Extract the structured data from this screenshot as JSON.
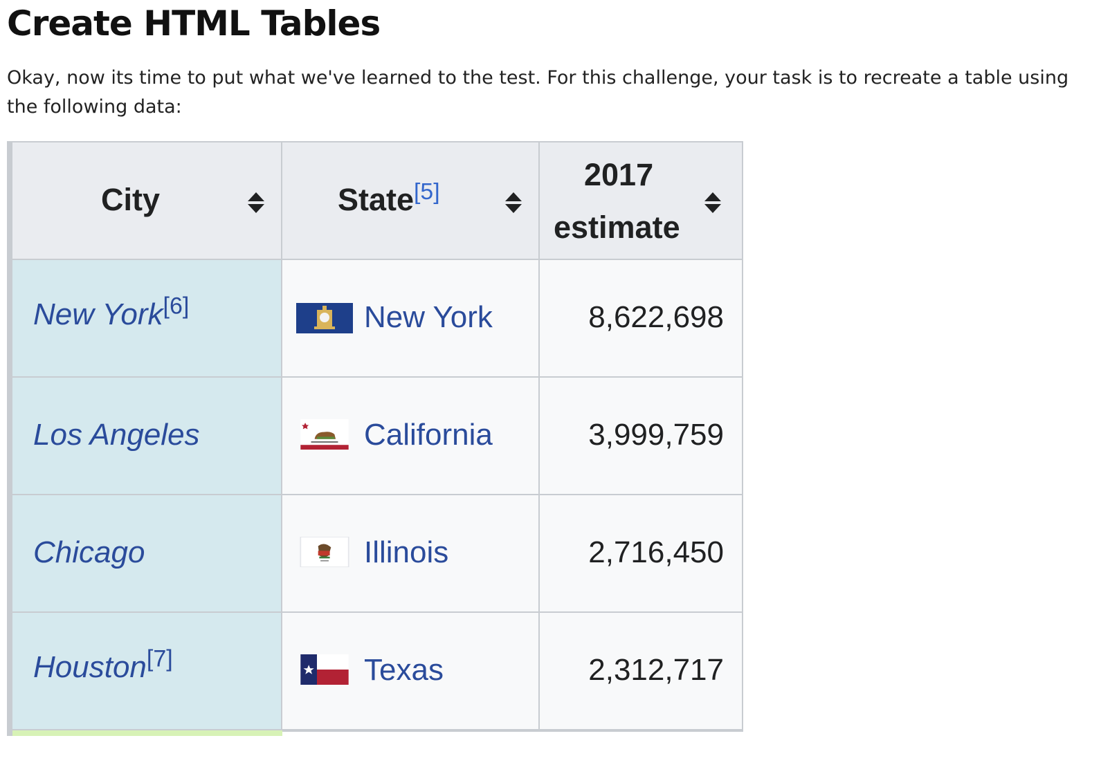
{
  "page": {
    "title": "Create HTML Tables",
    "intro": "Okay, now its time to put what we've learned to the test. For this challenge, your task is to recreate a table using the following data:"
  },
  "table": {
    "headers": {
      "city": "City",
      "state": "State",
      "state_ref": "[5]",
      "estimate_line1": "2017",
      "estimate_line2": "estimate"
    },
    "rows": [
      {
        "city": "New York",
        "city_ref": "[6]",
        "state": "New York",
        "flag": "new-york-flag-icon",
        "population": "8,622,698"
      },
      {
        "city": "Los Angeles",
        "city_ref": "",
        "state": "California",
        "flag": "california-flag-icon",
        "population": "3,999,759"
      },
      {
        "city": "Chicago",
        "city_ref": "",
        "state": "Illinois",
        "flag": "illinois-flag-icon",
        "population": "2,716,450"
      },
      {
        "city": "Houston",
        "city_ref": "[7]",
        "state": "Texas",
        "flag": "texas-flag-icon",
        "population": "2,312,717"
      }
    ]
  },
  "colors": {
    "header_bg": "#eaecf0",
    "city_cell_bg": "#d5e9ee",
    "cell_bg": "#f8f9fa",
    "link": "#2a4b9b",
    "border": "#c8ccd1"
  }
}
